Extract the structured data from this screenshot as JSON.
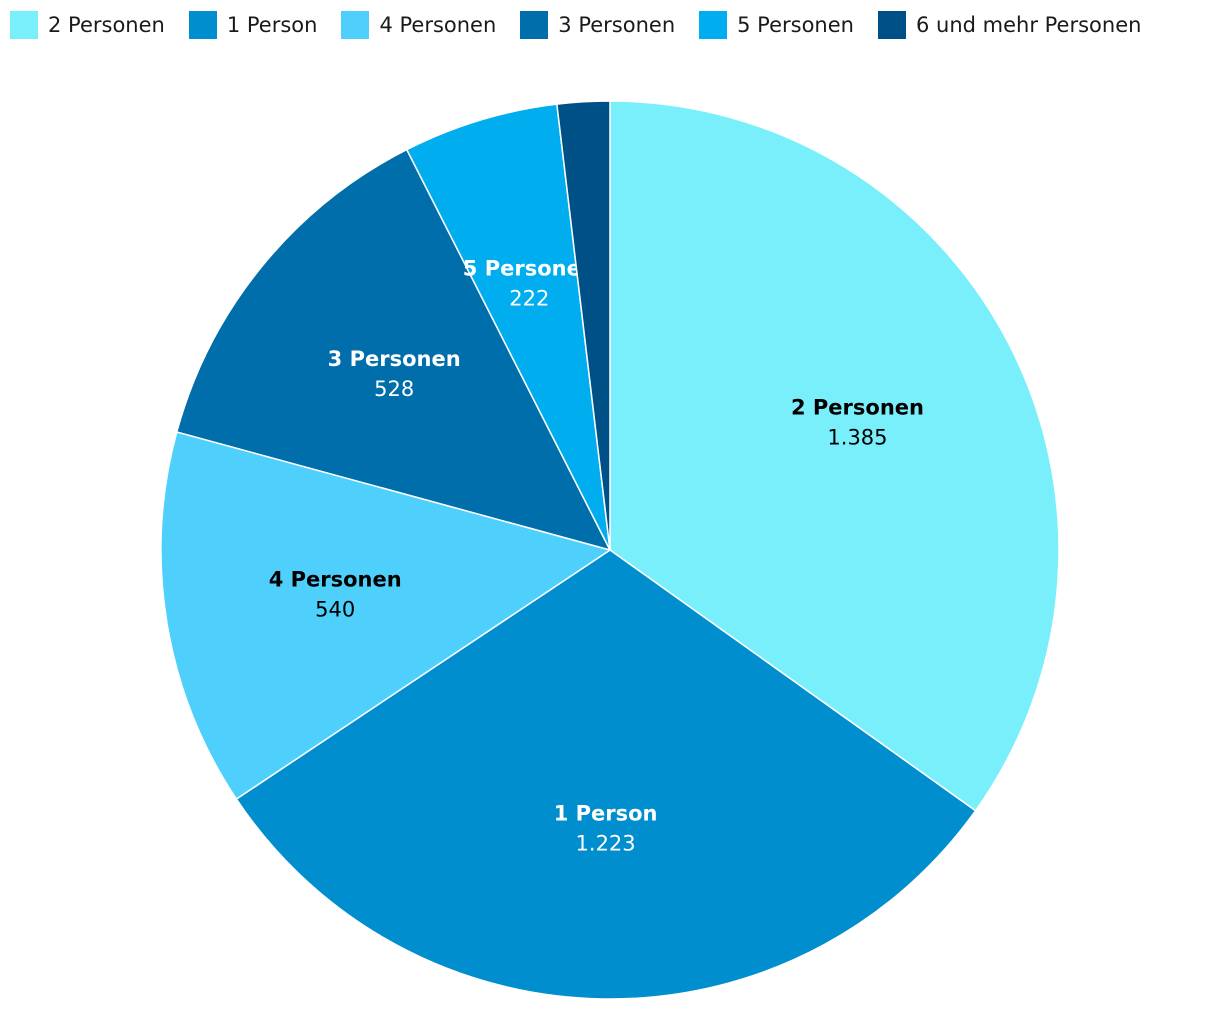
{
  "chart_data": {
    "type": "pie",
    "title": "",
    "legend_position": "top-left",
    "categories": [
      "2 Personen",
      "1 Person",
      "4 Personen",
      "3 Personen",
      "5 Personen",
      "6 und mehr Personen"
    ],
    "values": [
      1385,
      1223,
      540,
      528,
      222,
      75
    ],
    "value_labels": [
      "1.385",
      "1.223",
      "540",
      "528",
      "222",
      ""
    ],
    "colors": [
      "#79EFFC",
      "#008ECE",
      "#4FCFFB",
      "#006EAA",
      "#00AEEF",
      "#005088"
    ],
    "label_colors": [
      "#000000",
      "#ffffff",
      "#000000",
      "#ffffff",
      "#ffffff",
      "#ffffff"
    ]
  }
}
